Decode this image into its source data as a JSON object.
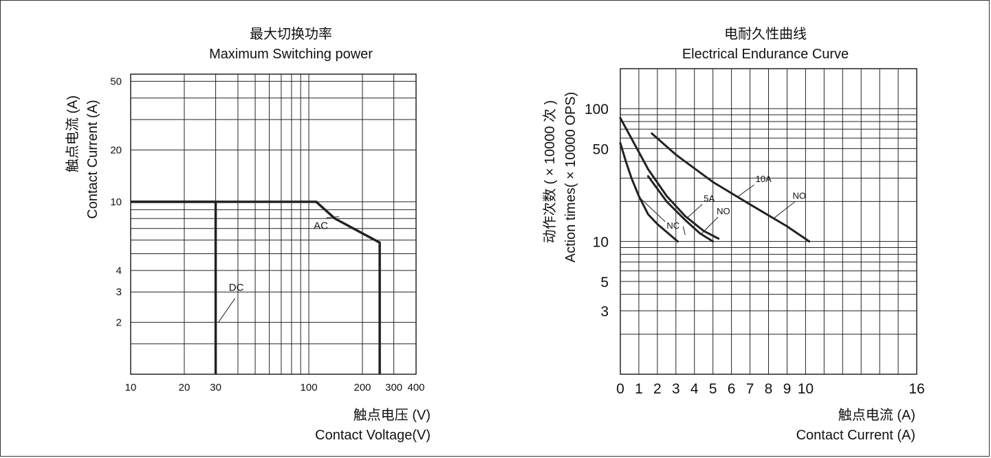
{
  "chart_data": [
    {
      "type": "line",
      "title": "最大切换功率",
      "subtitle": "Maximum Switching power",
      "xlabel_cn": "触点电压 (V)",
      "xlabel": "Contact Voltage(V)",
      "ylabel_cn": "触点电流 (A)",
      "ylabel": "Contact Current (A)",
      "x_scale": "log",
      "y_scale": "log",
      "xlim": [
        10,
        400
      ],
      "ylim": [
        1,
        55
      ],
      "x_ticks": [
        10,
        20,
        30,
        100,
        200,
        300,
        400
      ],
      "y_ticks": [
        2,
        3,
        4,
        10,
        20,
        50
      ],
      "grid": true,
      "series": [
        {
          "name": "AC",
          "x": [
            10,
            110,
            140,
            250,
            250
          ],
          "y": [
            10,
            10,
            8,
            5.8,
            1
          ]
        },
        {
          "name": "DC",
          "x": [
            10,
            30,
            30
          ],
          "y": [
            10,
            10,
            1
          ]
        }
      ],
      "annotations": [
        {
          "text": "AC",
          "x": 130,
          "y": 7.5
        },
        {
          "text": "DC",
          "x": 30,
          "y": 2
        }
      ]
    },
    {
      "type": "line",
      "title": "电耐久性曲线",
      "subtitle": "Electrical Endurance Curve",
      "xlabel_cn": "触点电流 (A)",
      "xlabel": "Contact Current (A)",
      "ylabel_cn": "动作次数 ( × 10000 次 )",
      "ylabel": "Action times( × 10000 OPS)",
      "x_scale": "linear",
      "y_scale": "log",
      "xlim": [
        0,
        16
      ],
      "ylim": [
        1,
        200
      ],
      "x_ticks": [
        0,
        1,
        2,
        3,
        4,
        5,
        6,
        7,
        8,
        9,
        10,
        16
      ],
      "y_ticks": [
        3,
        5,
        10,
        50,
        100
      ],
      "grid": true,
      "series": [
        {
          "name": "10A NO",
          "x": [
            1.7,
            3,
            5,
            7,
            9,
            10.2
          ],
          "y": [
            65,
            45,
            28,
            19,
            13,
            10
          ]
        },
        {
          "name": "5A NO",
          "x": [
            0,
            0.9,
            1.5,
            2.5,
            3.5,
            4.5,
            5.3
          ],
          "y": [
            85,
            50,
            35,
            22,
            15.5,
            12,
            10.5
          ]
        },
        {
          "name": "NC",
          "x": [
            0,
            0.3,
            0.6,
            1,
            1.5,
            2,
            3.1
          ],
          "y": [
            55,
            40,
            30,
            22,
            16,
            13.5,
            10
          ]
        },
        {
          "name": "NC",
          "x": [
            1.5,
            2.5,
            3.5,
            4.3,
            5
          ],
          "y": [
            31,
            20,
            14.5,
            11.5,
            10
          ]
        }
      ],
      "annotations": [
        {
          "text": "10A",
          "x": 7.3,
          "y": 28
        },
        {
          "text": "NO",
          "x": 9.3,
          "y": 21
        },
        {
          "text": "5A",
          "x": 4.5,
          "y": 20
        },
        {
          "text": "NO",
          "x": 5.2,
          "y": 16
        },
        {
          "text": "NC",
          "x": 2.5,
          "y": 12.5
        }
      ]
    }
  ]
}
